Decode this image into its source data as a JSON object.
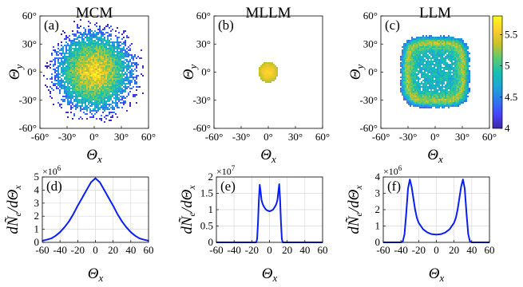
{
  "colormap": [
    "#3e26a8",
    "#4743f8",
    "#2d7bef",
    "#1ca6d6",
    "#17c0b0",
    "#5ccb70",
    "#c8c129",
    "#fcce2e",
    "#f9fb15"
  ],
  "titles": {
    "mcm": "MCM",
    "mllm": "MLLM",
    "llm": "LLM"
  },
  "axis_labels": {
    "theta_x": "Θx",
    "theta_y": "Θy",
    "dn_dtheta": "dÑe/dΘx"
  },
  "chart_data": [
    {
      "id": "a",
      "label": "(a)",
      "type": "heatmap",
      "title": "MCM",
      "xlabel": "Θx",
      "ylabel": "Θy",
      "xlim": [
        -60,
        60
      ],
      "ylim": [
        -60,
        60
      ],
      "xticks": [
        "-60°",
        "-30°",
        "0°",
        "30°",
        "60°"
      ],
      "yticks": [
        "-60°",
        "-30°",
        "0°",
        "30°",
        "60°"
      ],
      "distribution": {
        "shape": "gaussian-disk",
        "center": [
          0,
          0
        ],
        "core_radius_deg": 28,
        "halo_radius_deg": 55,
        "peak_log10": 5.6,
        "edge_log10": 4.0
      }
    },
    {
      "id": "b",
      "label": "(b)",
      "type": "heatmap",
      "title": "MLLM",
      "xlabel": "Θx",
      "ylabel": "Θy",
      "xlim": [
        -60,
        60
      ],
      "ylim": [
        -60,
        60
      ],
      "xticks": [
        "-60°",
        "-30°",
        "0°",
        "30°",
        "60°"
      ],
      "yticks": [
        "-60°",
        "-30°",
        "0°",
        "30°",
        "60°"
      ],
      "distribution": {
        "shape": "sharp-disk",
        "center": [
          0,
          0
        ],
        "radius_deg": 11,
        "center_log10": 5.6,
        "edge_log10": 5.3
      }
    },
    {
      "id": "c",
      "label": "(c)",
      "type": "heatmap",
      "title": "LLM",
      "xlabel": "Θx",
      "ylabel": "Θy",
      "xlim": [
        -60,
        60
      ],
      "ylim": [
        -60,
        60
      ],
      "xticks": [
        "-60°",
        "-30°",
        "0°",
        "30°",
        "60°"
      ],
      "yticks": [
        "-60°",
        "-30°",
        "0°",
        "30°",
        "60°"
      ],
      "distribution": {
        "shape": "rounded-square-ring",
        "center": [
          0,
          0
        ],
        "half_width_deg": 38,
        "ring_log10": 5.3,
        "inner_log10": 4.8,
        "outer_log10": 4.3
      },
      "colorbar": {
        "range": [
          4,
          5.8
        ],
        "ticks": [
          4,
          4.5,
          5,
          5.5
        ],
        "tick_labels": [
          "4",
          "4.5",
          "5",
          "5.5"
        ]
      }
    },
    {
      "id": "d",
      "label": "(d)",
      "type": "line",
      "xlabel": "Θx",
      "ylabel": "dÑe/dΘx",
      "xlim": [
        -60,
        60
      ],
      "ylim": [
        0,
        5
      ],
      "xticks": [
        "-60",
        "-40",
        "-20",
        "0",
        "20",
        "40",
        "60"
      ],
      "yticks": [
        "0",
        "1",
        "2",
        "3",
        "4",
        "5"
      ],
      "exponent": "×10",
      "exponent_power": "6",
      "grid": true,
      "x": [
        -60,
        -55,
        -50,
        -45,
        -40,
        -35,
        -30,
        -25,
        -20,
        -15,
        -10,
        -5,
        0,
        5,
        10,
        15,
        20,
        25,
        30,
        35,
        40,
        45,
        50,
        55,
        60
      ],
      "y": [
        0.12,
        0.2,
        0.3,
        0.5,
        0.78,
        1.15,
        1.6,
        2.15,
        2.8,
        3.4,
        4.0,
        4.6,
        4.9,
        4.6,
        4.0,
        3.4,
        2.8,
        2.15,
        1.6,
        1.15,
        0.78,
        0.5,
        0.3,
        0.2,
        0.12
      ]
    },
    {
      "id": "e",
      "label": "(e)",
      "type": "line",
      "xlabel": "Θx",
      "ylabel": "dÑe/dΘx",
      "xlim": [
        -60,
        60
      ],
      "ylim": [
        0,
        2
      ],
      "xticks": [
        "-60",
        "-40",
        "-20",
        "0",
        "20",
        "40",
        "60"
      ],
      "yticks": [
        "0",
        "0.5",
        "1",
        "1.5",
        "2"
      ],
      "exponent": "×10",
      "exponent_power": "7",
      "grid": true,
      "x": [
        -60,
        -15,
        -14,
        -13,
        -12,
        -11,
        -10,
        -9,
        -8,
        -7,
        -6,
        -4,
        -2,
        0,
        2,
        4,
        6,
        7,
        8,
        9,
        10,
        11,
        12,
        13,
        14,
        15,
        60
      ],
      "y": [
        0,
        0,
        0.1,
        0.6,
        1.3,
        1.76,
        1.55,
        1.3,
        1.2,
        1.13,
        1.08,
        1.0,
        0.97,
        0.95,
        0.97,
        1.0,
        1.08,
        1.13,
        1.2,
        1.3,
        1.55,
        1.78,
        1.3,
        0.6,
        0.1,
        0,
        0
      ]
    },
    {
      "id": "f",
      "label": "(f)",
      "type": "line",
      "xlabel": "Θx",
      "ylabel": "dÑe/dΘx",
      "xlim": [
        -60,
        60
      ],
      "ylim": [
        0,
        4
      ],
      "xticks": [
        "-60",
        "-40",
        "-20",
        "0",
        "20",
        "40",
        "60"
      ],
      "yticks": [
        "0",
        "1",
        "2",
        "3",
        "4"
      ],
      "exponent": "×10",
      "exponent_power": "6",
      "grid": true,
      "x": [
        -60,
        -40,
        -38,
        -36,
        -34,
        -32,
        -30,
        -28,
        -26,
        -24,
        -22,
        -20,
        -15,
        -10,
        -5,
        0,
        5,
        10,
        15,
        20,
        22,
        24,
        26,
        28,
        30,
        32,
        34,
        36,
        38,
        40,
        60
      ],
      "y": [
        0,
        0,
        0.05,
        0.5,
        1.8,
        3.3,
        3.85,
        3.4,
        2.7,
        2.0,
        1.5,
        1.2,
        0.8,
        0.6,
        0.5,
        0.48,
        0.5,
        0.6,
        0.8,
        1.2,
        1.5,
        2.0,
        2.7,
        3.4,
        3.85,
        3.3,
        1.8,
        0.5,
        0.05,
        0,
        0
      ]
    }
  ]
}
